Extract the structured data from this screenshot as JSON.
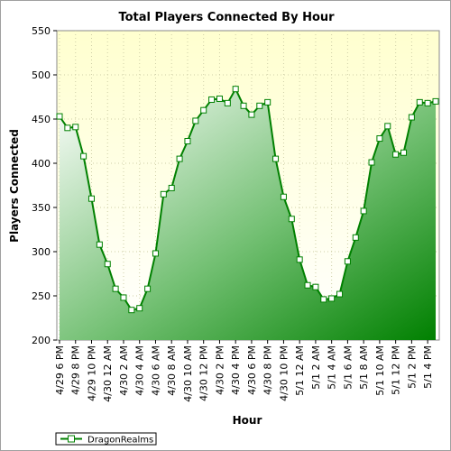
{
  "chart_data": {
    "type": "area",
    "title": "Total Players Connected By Hour",
    "xlabel": "Hour",
    "ylabel": "Players Connected",
    "ylim": [
      200,
      550
    ],
    "yticks": [
      200,
      250,
      300,
      350,
      400,
      450,
      500,
      550
    ],
    "grid": true,
    "legend": "bottom-left",
    "x_tick_labels": [
      "4/29 6 PM",
      "4/29 8 PM",
      "4/29 10 PM",
      "4/30 12 AM",
      "4/30 2 AM",
      "4/30 4 AM",
      "4/30 6 AM",
      "4/30 8 AM",
      "4/30 10 AM",
      "4/30 12 PM",
      "4/30 2 PM",
      "4/30 4 PM",
      "4/30 6 PM",
      "4/30 8 PM",
      "4/30 10 PM",
      "5/1 12 AM",
      "5/1 2 AM",
      "5/1 4 AM",
      "5/1 6 AM",
      "5/1 8 AM",
      "5/1 10 AM",
      "5/1 12 PM",
      "5/1 2 PM",
      "5/1 4 PM"
    ],
    "series": [
      {
        "name": "DragonRealms",
        "color": "#008000",
        "values": [
          453,
          440,
          441,
          408,
          360,
          308,
          286,
          258,
          248,
          234,
          236,
          258,
          298,
          365,
          372,
          405,
          425,
          448,
          460,
          472,
          473,
          468,
          484,
          465,
          455,
          465,
          469,
          405,
          362,
          337,
          291,
          262,
          260,
          246,
          247,
          252,
          289,
          316,
          346,
          401,
          428,
          442,
          410,
          412,
          452,
          469,
          468,
          470
        ]
      }
    ]
  }
}
